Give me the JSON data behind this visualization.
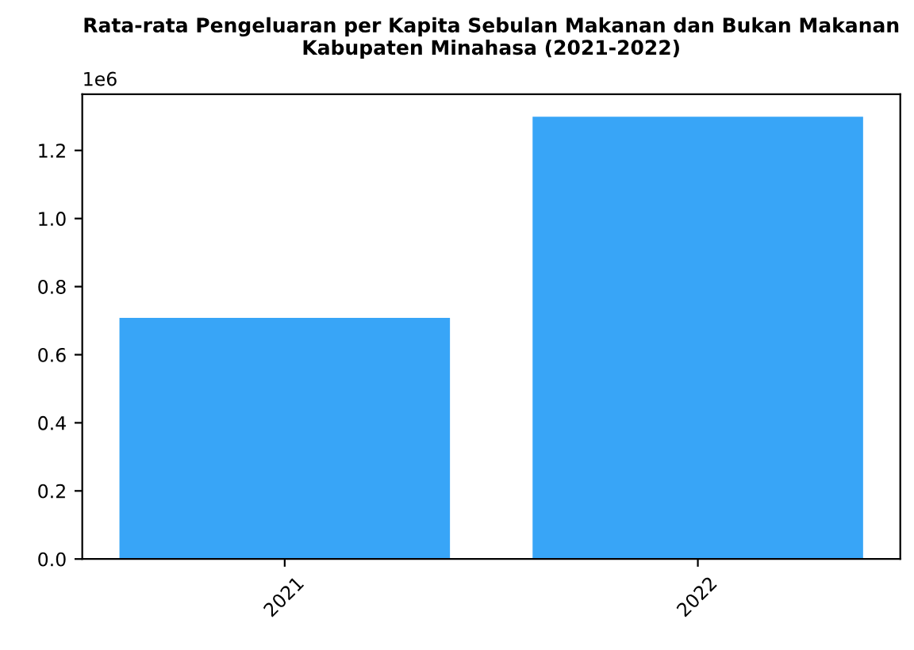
{
  "chart_data": {
    "type": "bar",
    "title": "Rata-rata Pengeluaran per Kapita Sebulan Makanan dan Bukan Makanan\nKabupaten Minahasa (2021-2022)",
    "categories": [
      "2021",
      "2022"
    ],
    "values": [
      0.708,
      1.299
    ],
    "color": "#38a5f7",
    "ylim": [
      0,
      1.365
    ],
    "yticks": [
      {
        "value": 0,
        "label": "0.0"
      },
      0.2,
      0.4,
      0.6,
      0.8,
      {
        "value": 1,
        "label": "1.0"
      },
      1.2
    ],
    "annotations": [
      "1e6"
    ],
    "grid": false,
    "legend": false
  }
}
